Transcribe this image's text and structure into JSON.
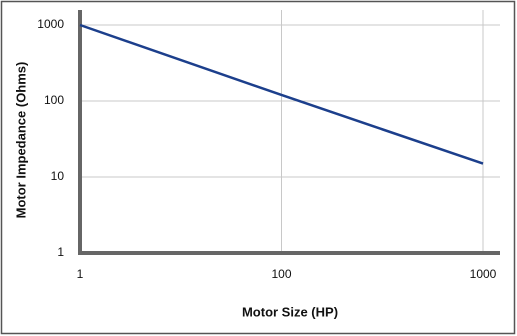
{
  "chart_data": {
    "type": "line",
    "x_label": "Motor Size (HP)",
    "y_label": "Motor Impedance (Ohms)",
    "categories": [
      "1",
      "100",
      "1000"
    ],
    "series": [
      {
        "name": "Motor Impedance",
        "color": "#1c3f8c",
        "values": [
          1000,
          120,
          15
        ]
      }
    ],
    "yscale": "log",
    "ylim": [
      1,
      1000
    ],
    "yticks": [
      1,
      10,
      100,
      1000
    ],
    "grid": true
  }
}
